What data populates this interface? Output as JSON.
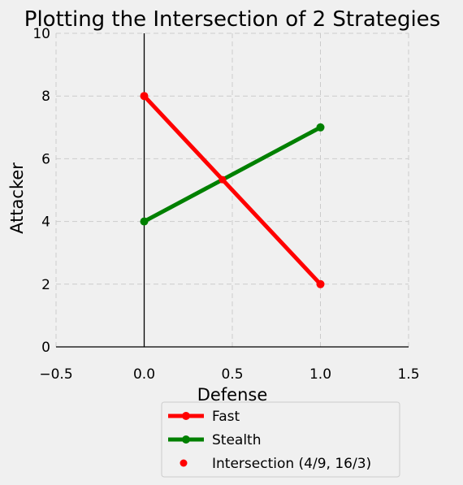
{
  "chart_data": {
    "type": "line",
    "title": "Plotting the Intersection of 2 Strategies",
    "xlabel": "Defense",
    "ylabel": "Attacker",
    "xlim": [
      -0.5,
      1.5
    ],
    "ylim": [
      0,
      10
    ],
    "xticks": [
      -0.5,
      0.0,
      0.5,
      1.0,
      1.5
    ],
    "xtick_labels": [
      "−0.5",
      "0.0",
      "0.5",
      "1.0",
      "1.5"
    ],
    "yticks": [
      0,
      2,
      4,
      6,
      8,
      10
    ],
    "ytick_labels": [
      "0",
      "2",
      "4",
      "6",
      "8",
      "10"
    ],
    "grid": true,
    "legend_position": "bottom-outside",
    "series": [
      {
        "name": "Fast",
        "color": "#ff0000",
        "x": [
          0,
          1
        ],
        "y": [
          8,
          2
        ],
        "marker": "circle"
      },
      {
        "name": "Stealth",
        "color": "#008000",
        "x": [
          0,
          1
        ],
        "y": [
          4,
          7
        ],
        "marker": "circle"
      }
    ],
    "points": [
      {
        "name": "Intersection (4/9, 16/3)",
        "color": "#ff0000",
        "x": 0.4444,
        "y": 5.3333
      }
    ],
    "reference_lines": [
      {
        "axis": "x",
        "value": 0,
        "color": "#000000"
      },
      {
        "axis": "y",
        "value": 0,
        "color": "#000000"
      }
    ]
  }
}
